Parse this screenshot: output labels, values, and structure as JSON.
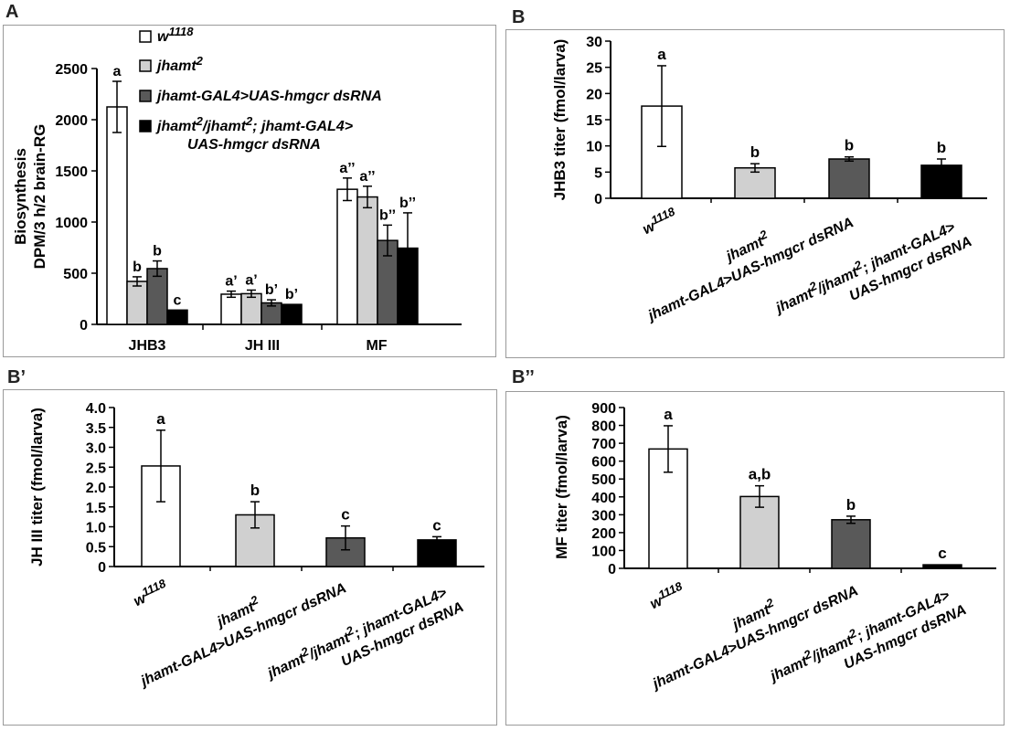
{
  "panels": {
    "A": "A",
    "B": "B",
    "Bp": "B’",
    "Bpp": "B’’"
  },
  "colors": {
    "w1118": "#ffffff",
    "jhamt2": "#d0d0d0",
    "gal4": "#595959",
    "double": "#000000",
    "axis": "#000000",
    "frame": "#9a9a9a"
  },
  "chart_data": [
    {
      "panel": "A",
      "type": "bar",
      "title": "",
      "ylabel": [
        "Biosynthesis",
        "DPM/3 h/2 brain-RG"
      ],
      "xlabel": "",
      "ylim": [
        0,
        2500
      ],
      "yticks": [
        "0",
        "500",
        "1000",
        "1500",
        "2000",
        "2500"
      ],
      "categories": [
        "JHB3",
        "JH III",
        "MF"
      ],
      "legend": [
        {
          "label": "w",
          "sup": "1118"
        },
        {
          "label": "jhamt",
          "sup": "2"
        },
        {
          "label": "jhamt-GAL4>UAS-hmgcr dsRNA",
          "sup": ""
        },
        {
          "label": "jhamt",
          "sup": "2",
          "label2": "/jhamt",
          "sup2": "2",
          "label3": "; jhamt-GAL4>",
          "line2": "UAS-hmgcr dsRNA"
        }
      ],
      "series": [
        {
          "values": [
            2125,
            295,
            1320
          ],
          "err": [
            250,
            30,
            110
          ],
          "letters": [
            "a",
            "a’",
            "a’’"
          ]
        },
        {
          "values": [
            420,
            300,
            1245
          ],
          "err": [
            45,
            35,
            105
          ],
          "letters": [
            "b",
            "a’",
            "a’’"
          ]
        },
        {
          "values": [
            545,
            210,
            820
          ],
          "err": [
            75,
            30,
            150
          ],
          "letters": [
            "b",
            "b’",
            "b’’"
          ]
        },
        {
          "values": [
            140,
            195,
            745
          ],
          "err": [
            0,
            0,
            345
          ],
          "letters": [
            "c",
            "b’",
            "b’’"
          ]
        }
      ]
    },
    {
      "panel": "B",
      "type": "bar",
      "title": "",
      "ylabel": [
        "JHB3 titer (fmol/larva)"
      ],
      "ylim": [
        0,
        30
      ],
      "yticks": [
        "0",
        "5",
        "10",
        "15",
        "20",
        "25",
        "30"
      ],
      "categories": [
        {
          "label": "w",
          "sup": "1118"
        },
        {
          "label": "jhamt",
          "sup": "2"
        },
        {
          "label": "jhamt-GAL4>UAS-hmgcr dsRNA"
        },
        {
          "label": "jhamt",
          "sup": "2",
          "label2": "/jhamt",
          "sup2": "2",
          "label3": "; jhamt-GAL4>",
          "line2": "UAS-hmgcr dsRNA"
        }
      ],
      "values": [
        17.6,
        5.8,
        7.5,
        6.3
      ],
      "err": [
        7.7,
        0.8,
        0.4,
        1.2
      ],
      "letters": [
        "a",
        "b",
        "b",
        "b"
      ]
    },
    {
      "panel": "B’",
      "type": "bar",
      "title": "",
      "ylabel": [
        "JH III titer (fmol/larva)"
      ],
      "ylim": [
        0,
        4.0
      ],
      "yticks": [
        "0",
        "0.5",
        "1.0",
        "1.5",
        "2.0",
        "2.5",
        "3.0",
        "3.5",
        "4.0"
      ],
      "categories": [
        {
          "label": "w",
          "sup": "1118"
        },
        {
          "label": "jhamt",
          "sup": "2"
        },
        {
          "label": "jhamt-GAL4>UAS-hmgcr dsRNA"
        },
        {
          "label": "jhamt",
          "sup": "2",
          "label2": "/jhamt",
          "sup2": "2",
          "label3": "; jhamt-GAL4>",
          "line2": "UAS-hmgcr dsRNA"
        }
      ],
      "values": [
        2.53,
        1.3,
        0.72,
        0.67
      ],
      "err": [
        0.9,
        0.33,
        0.3,
        0.08
      ],
      "letters": [
        "a",
        "b",
        "c",
        "c"
      ]
    },
    {
      "panel": "B’’",
      "type": "bar",
      "title": "",
      "ylabel": [
        "MF titer (fmol/larva)"
      ],
      "ylim": [
        0,
        900
      ],
      "yticks": [
        "0",
        "100",
        "200",
        "300",
        "400",
        "500",
        "600",
        "700",
        "800",
        "900"
      ],
      "categories": [
        {
          "label": "w",
          "sup": "1118"
        },
        {
          "label": "jhamt",
          "sup": "2"
        },
        {
          "label": "jhamt-GAL4>UAS-hmgcr dsRNA"
        },
        {
          "label": "jhamt",
          "sup": "2",
          "label2": "/jhamt",
          "sup2": "2",
          "label3": "; jhamt-GAL4>",
          "line2": "UAS-hmgcr dsRNA"
        }
      ],
      "values": [
        668,
        402,
        272,
        20
      ],
      "err": [
        130,
        60,
        20,
        0
      ],
      "letters": [
        "a",
        "a,b",
        "b",
        "c"
      ]
    }
  ]
}
